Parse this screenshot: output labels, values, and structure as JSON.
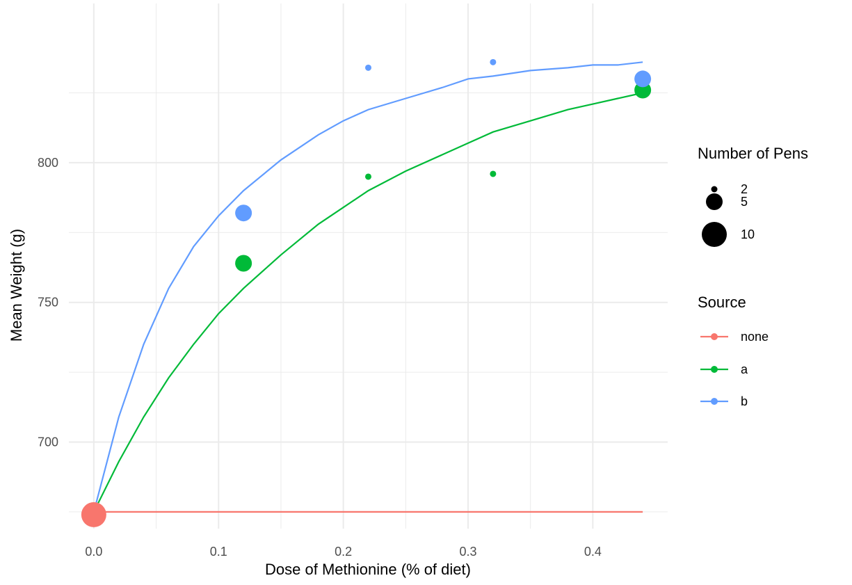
{
  "chart_data": {
    "type": "scatter",
    "xlabel": "Dose of Methionine (% of diet)",
    "ylabel": "Mean Weight (g)",
    "xlim": [
      -0.02,
      0.46
    ],
    "ylim": [
      669,
      857
    ],
    "x_ticks": [
      0.0,
      0.1,
      0.2,
      0.3,
      0.4
    ],
    "x_tick_labels": [
      "0.0",
      "0.1",
      "0.2",
      "0.3",
      "0.4"
    ],
    "y_ticks": [
      700,
      750,
      800
    ],
    "y_tick_labels": [
      "700",
      "750",
      "800"
    ],
    "grid": true,
    "colors": {
      "none": "#F8766D",
      "a": "#00BA38",
      "b": "#619CFF"
    },
    "points": [
      {
        "series": "none",
        "x": 0.0,
        "y": 674,
        "pens": 10
      },
      {
        "series": "a",
        "x": 0.12,
        "y": 764,
        "pens": 5
      },
      {
        "series": "a",
        "x": 0.22,
        "y": 795,
        "pens": 2
      },
      {
        "series": "a",
        "x": 0.32,
        "y": 796,
        "pens": 2
      },
      {
        "series": "a",
        "x": 0.44,
        "y": 826,
        "pens": 5
      },
      {
        "series": "b",
        "x": 0.12,
        "y": 782,
        "pens": 5
      },
      {
        "series": "b",
        "x": 0.22,
        "y": 834,
        "pens": 2
      },
      {
        "series": "b",
        "x": 0.32,
        "y": 836,
        "pens": 2
      },
      {
        "series": "b",
        "x": 0.44,
        "y": 830,
        "pens": 5
      }
    ],
    "curves": [
      {
        "series": "none",
        "x": [
          0.0,
          0.44
        ],
        "y": [
          675,
          675
        ]
      },
      {
        "series": "a",
        "x": [
          0.0,
          0.02,
          0.04,
          0.06,
          0.08,
          0.1,
          0.12,
          0.15,
          0.18,
          0.2,
          0.22,
          0.25,
          0.28,
          0.3,
          0.32,
          0.35,
          0.38,
          0.4,
          0.42,
          0.44
        ],
        "y": [
          675,
          693,
          709,
          723,
          735,
          746,
          755,
          767,
          778,
          784,
          790,
          797,
          803,
          807,
          811,
          815,
          819,
          821,
          823,
          825
        ]
      },
      {
        "series": "b",
        "x": [
          0.0,
          0.02,
          0.04,
          0.06,
          0.08,
          0.1,
          0.12,
          0.15,
          0.18,
          0.2,
          0.22,
          0.25,
          0.28,
          0.3,
          0.32,
          0.35,
          0.38,
          0.4,
          0.42,
          0.44
        ],
        "y": [
          675,
          709,
          735,
          755,
          770,
          781,
          790,
          801,
          810,
          815,
          819,
          823,
          827,
          830,
          831,
          833,
          834,
          835,
          835,
          836
        ]
      }
    ],
    "legends": {
      "size": {
        "title": "Number of Pens",
        "entries": [
          "2",
          "5",
          "10"
        ]
      },
      "color": {
        "title": "Source",
        "entries": [
          "none",
          "a",
          "b"
        ]
      }
    }
  }
}
